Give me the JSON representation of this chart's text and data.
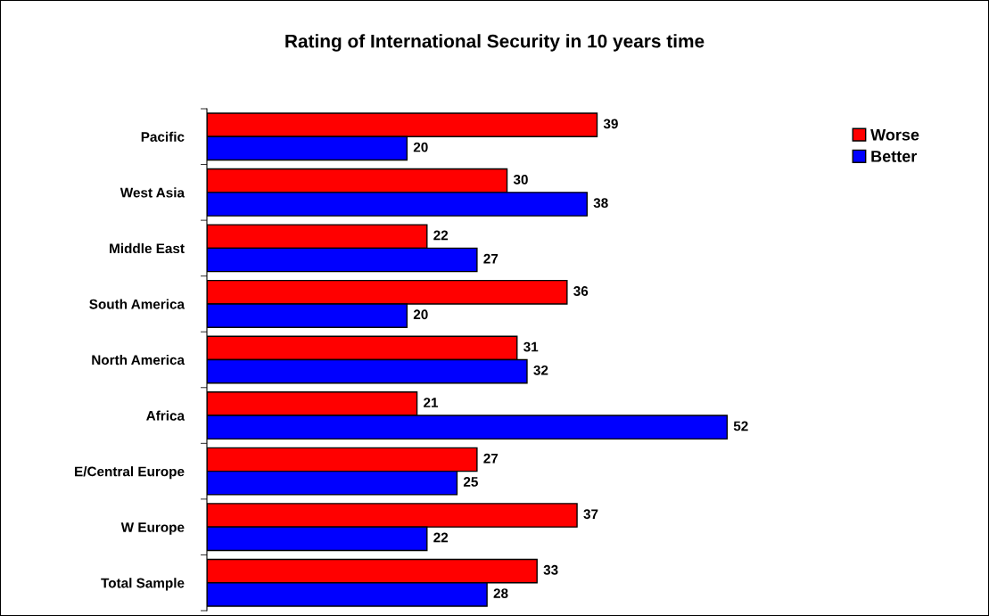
{
  "chart_data": {
    "type": "bar",
    "orientation": "horizontal",
    "title": "Rating of International Security in 10 years time",
    "categories": [
      "Pacific",
      "West Asia",
      "Middle East",
      "South America",
      "North America",
      "Africa",
      "E/Central Europe",
      "W Europe",
      "Total Sample"
    ],
    "series": [
      {
        "name": "Worse",
        "color": "#ff0000",
        "values": [
          39,
          30,
          22,
          36,
          31,
          21,
          27,
          37,
          33
        ]
      },
      {
        "name": "Better",
        "color": "#0000ff",
        "values": [
          20,
          38,
          27,
          20,
          32,
          52,
          25,
          22,
          28
        ]
      }
    ],
    "data_labels": true,
    "legend": "top right",
    "grid": false,
    "tick_labels": "y"
  }
}
